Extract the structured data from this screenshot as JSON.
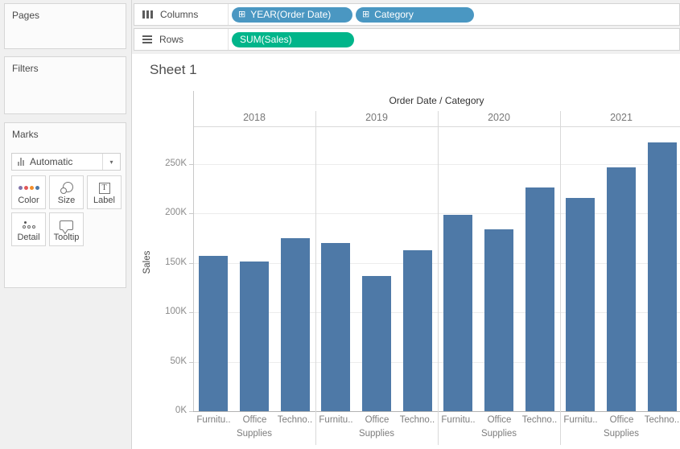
{
  "sidebar": {
    "pages_label": "Pages",
    "filters_label": "Filters",
    "marks": {
      "title": "Marks",
      "mark_type": "Automatic",
      "buttons": [
        {
          "label": "Color"
        },
        {
          "label": "Size"
        },
        {
          "label": "Label"
        },
        {
          "label": "Detail"
        },
        {
          "label": "Tooltip"
        }
      ],
      "label_icon_glyph": "T"
    }
  },
  "shelves": {
    "columns": {
      "label": "Columns",
      "pills": [
        {
          "label": "YEAR(Order Date)",
          "type": "dimension"
        },
        {
          "label": "Category",
          "type": "dimension"
        }
      ]
    },
    "rows": {
      "label": "Rows",
      "pills": [
        {
          "label": "SUM(Sales)",
          "type": "measure"
        }
      ]
    }
  },
  "sheet": {
    "title": "Sheet 1"
  },
  "colors": {
    "dimension_pill": "#4a97c2",
    "measure_pill": "#00b58a",
    "color_icon_dots": [
      "#8175aa",
      "#e15759",
      "#f28e2b",
      "#4e79a7"
    ]
  },
  "chart_data": {
    "type": "bar",
    "title": "Order Date / Category",
    "ylabel": "Sales",
    "y_ticks": [
      "0K",
      "50K",
      "100K",
      "150K",
      "200K",
      "250K"
    ],
    "ylim_k": [
      0,
      250
    ],
    "grid": true,
    "bar_color": "#4e79a7",
    "categories": [
      "Furniture",
      "Office Supplies",
      "Technology"
    ],
    "category_tick_labels": [
      [
        "Furnitu..",
        ""
      ],
      [
        "Office",
        "Supplies"
      ],
      [
        "Techno..",
        ""
      ]
    ],
    "groups": [
      {
        "year": "2018",
        "values_k": [
          157.2,
          151.8,
          175.3
        ]
      },
      {
        "year": "2019",
        "values_k": [
          170.5,
          137.2,
          162.8
        ]
      },
      {
        "year": "2020",
        "values_k": [
          198.9,
          183.9,
          226.4
        ]
      },
      {
        "year": "2021",
        "values_k": [
          215.4,
          246.9,
          271.7
        ]
      }
    ]
  }
}
